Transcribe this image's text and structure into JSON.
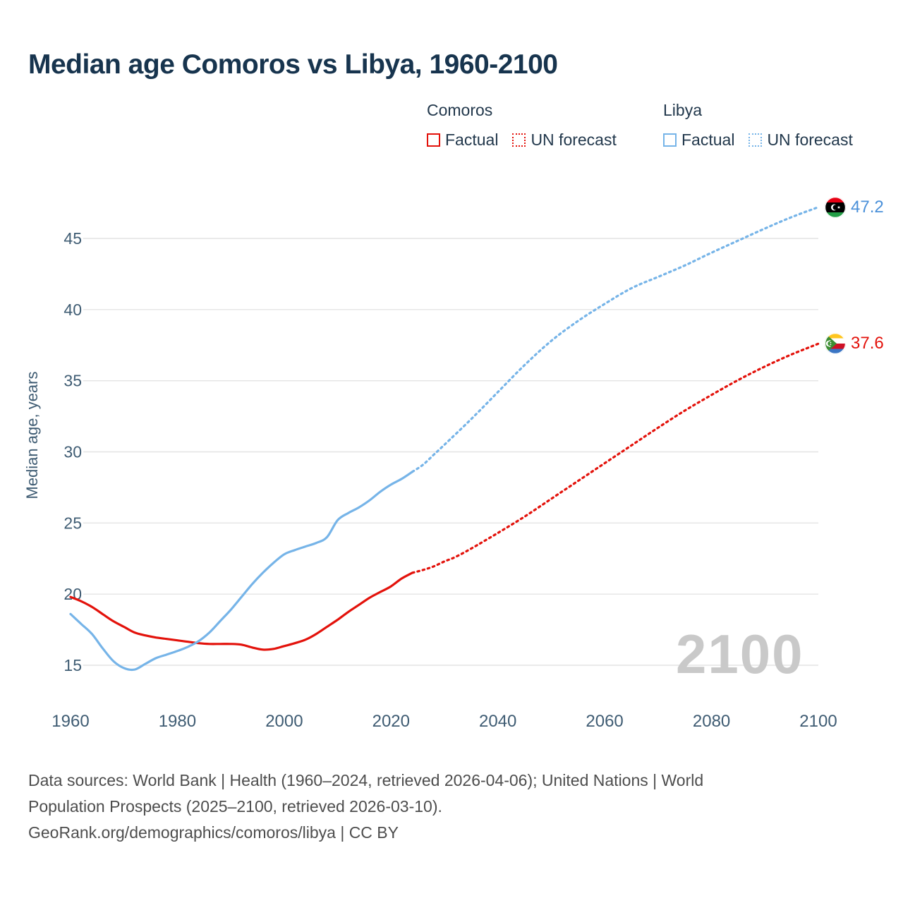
{
  "title": "Median age Comoros vs Libya, 1960-2100",
  "ylabel": "Median age, years",
  "watermark": "2100",
  "legend": {
    "groups": [
      {
        "country": "Comoros",
        "items": [
          {
            "label": "Factual",
            "style": "solid"
          },
          {
            "label": "UN forecast",
            "style": "dotted"
          }
        ]
      },
      {
        "country": "Libya",
        "items": [
          {
            "label": "Factual",
            "style": "solid"
          },
          {
            "label": "UN forecast",
            "style": "dotted"
          }
        ]
      }
    ]
  },
  "end_markers": {
    "libya": {
      "label": "47.2",
      "value": 47.2,
      "color": "#4a90d9"
    },
    "comoros": {
      "label": "37.6",
      "value": 37.6,
      "color": "#e3120b"
    }
  },
  "footer": {
    "lines": [
      "Data sources: World Bank | Health (1960–2024, retrieved 2026-04-06); United Nations | World",
      "Population Prospects (2025–2100, retrieved 2026-03-10).",
      "GeoRank.org/demographics/comoros/libya | CC BY"
    ]
  },
  "colors": {
    "comoros": "#e3120b",
    "libya": "#76b4e8",
    "grid": "#e4e4e4",
    "axis_text": "#3f5c73",
    "title_text": "#17344e",
    "watermark": "#c9c9c9",
    "footer_text": "#4d4d4d"
  },
  "chart_data": {
    "type": "line",
    "title": "Median age Comoros vs Libya, 1960-2100",
    "xlabel": "",
    "ylabel": "Median age, years",
    "xlim": [
      1960,
      2100
    ],
    "ylim": [
      13,
      48.5
    ],
    "xticks": [
      1960,
      1980,
      2000,
      2020,
      2040,
      2060,
      2080,
      2100
    ],
    "yticks": [
      15,
      20,
      25,
      30,
      35,
      40,
      45
    ],
    "grid": "horizontal",
    "legend_position": "top-right",
    "series": [
      {
        "name": "Comoros Factual",
        "color": "#e3120b",
        "style": "solid",
        "points": [
          [
            1960,
            19.8
          ],
          [
            1962,
            19.5
          ],
          [
            1964,
            19.1
          ],
          [
            1966,
            18.6
          ],
          [
            1968,
            18.1
          ],
          [
            1970,
            17.7
          ],
          [
            1972,
            17.3
          ],
          [
            1974,
            17.1
          ],
          [
            1976,
            16.95
          ],
          [
            1978,
            16.85
          ],
          [
            1980,
            16.75
          ],
          [
            1982,
            16.65
          ],
          [
            1984,
            16.55
          ],
          [
            1986,
            16.5
          ],
          [
            1988,
            16.5
          ],
          [
            1990,
            16.5
          ],
          [
            1992,
            16.45
          ],
          [
            1994,
            16.25
          ],
          [
            1996,
            16.1
          ],
          [
            1998,
            16.15
          ],
          [
            2000,
            16.35
          ],
          [
            2002,
            16.55
          ],
          [
            2004,
            16.8
          ],
          [
            2006,
            17.2
          ],
          [
            2008,
            17.7
          ],
          [
            2010,
            18.2
          ],
          [
            2012,
            18.75
          ],
          [
            2014,
            19.25
          ],
          [
            2016,
            19.75
          ],
          [
            2018,
            20.15
          ],
          [
            2020,
            20.55
          ],
          [
            2022,
            21.1
          ],
          [
            2024,
            21.5
          ]
        ]
      },
      {
        "name": "Comoros UN forecast",
        "color": "#e3120b",
        "style": "dashed",
        "points": [
          [
            2024,
            21.5
          ],
          [
            2026,
            21.7
          ],
          [
            2028,
            21.95
          ],
          [
            2030,
            22.3
          ],
          [
            2032,
            22.6
          ],
          [
            2035,
            23.2
          ],
          [
            2040,
            24.3
          ],
          [
            2045,
            25.45
          ],
          [
            2050,
            26.7
          ],
          [
            2055,
            27.95
          ],
          [
            2060,
            29.2
          ],
          [
            2065,
            30.45
          ],
          [
            2070,
            31.7
          ],
          [
            2075,
            32.9
          ],
          [
            2080,
            34.0
          ],
          [
            2085,
            35.05
          ],
          [
            2090,
            36.0
          ],
          [
            2095,
            36.85
          ],
          [
            2100,
            37.6
          ]
        ]
      },
      {
        "name": "Libya Factual",
        "color": "#76b4e8",
        "style": "solid",
        "points": [
          [
            1960,
            18.6
          ],
          [
            1962,
            17.9
          ],
          [
            1964,
            17.2
          ],
          [
            1966,
            16.2
          ],
          [
            1968,
            15.3
          ],
          [
            1970,
            14.8
          ],
          [
            1972,
            14.7
          ],
          [
            1974,
            15.1
          ],
          [
            1976,
            15.5
          ],
          [
            1978,
            15.75
          ],
          [
            1980,
            16.0
          ],
          [
            1982,
            16.3
          ],
          [
            1984,
            16.7
          ],
          [
            1986,
            17.3
          ],
          [
            1988,
            18.1
          ],
          [
            1990,
            18.9
          ],
          [
            1992,
            19.8
          ],
          [
            1994,
            20.7
          ],
          [
            1996,
            21.5
          ],
          [
            1998,
            22.2
          ],
          [
            2000,
            22.8
          ],
          [
            2002,
            23.1
          ],
          [
            2004,
            23.35
          ],
          [
            2006,
            23.6
          ],
          [
            2008,
            24.0
          ],
          [
            2010,
            25.2
          ],
          [
            2012,
            25.7
          ],
          [
            2014,
            26.1
          ],
          [
            2016,
            26.6
          ],
          [
            2018,
            27.2
          ],
          [
            2020,
            27.7
          ],
          [
            2022,
            28.1
          ],
          [
            2024,
            28.6
          ]
        ]
      },
      {
        "name": "Libya UN forecast",
        "color": "#76b4e8",
        "style": "dashed",
        "points": [
          [
            2024,
            28.6
          ],
          [
            2026,
            29.1
          ],
          [
            2028,
            29.8
          ],
          [
            2030,
            30.5
          ],
          [
            2035,
            32.3
          ],
          [
            2040,
            34.2
          ],
          [
            2045,
            36.1
          ],
          [
            2050,
            37.8
          ],
          [
            2055,
            39.2
          ],
          [
            2060,
            40.4
          ],
          [
            2065,
            41.5
          ],
          [
            2070,
            42.3
          ],
          [
            2075,
            43.1
          ],
          [
            2080,
            44.0
          ],
          [
            2085,
            44.85
          ],
          [
            2090,
            45.7
          ],
          [
            2095,
            46.5
          ],
          [
            2100,
            47.2
          ]
        ]
      }
    ]
  }
}
